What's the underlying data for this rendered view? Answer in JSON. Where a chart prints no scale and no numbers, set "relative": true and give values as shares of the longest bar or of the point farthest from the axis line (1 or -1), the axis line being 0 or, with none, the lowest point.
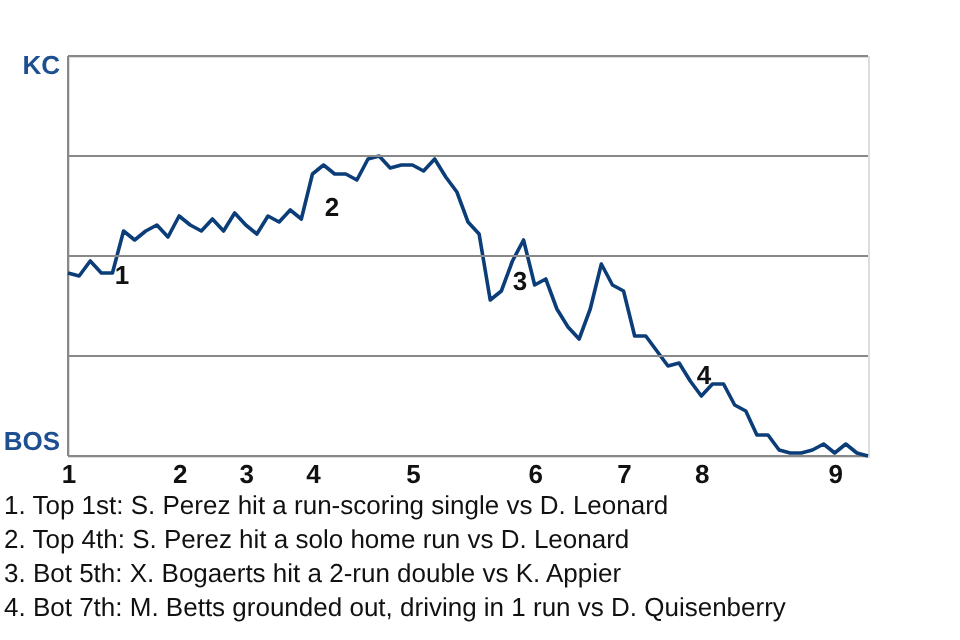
{
  "chart_data": {
    "type": "line",
    "categories": [
      "1",
      null,
      null,
      null,
      null,
      null,
      null,
      null,
      null,
      null,
      "2",
      null,
      null,
      null,
      null,
      null,
      "3",
      null,
      null,
      null,
      null,
      null,
      "4",
      null,
      null,
      null,
      null,
      null,
      null,
      null,
      null,
      "5",
      null,
      null,
      null,
      null,
      null,
      null,
      null,
      null,
      null,
      null,
      "6",
      null,
      null,
      null,
      null,
      null,
      null,
      null,
      "7",
      null,
      null,
      null,
      null,
      null,
      null,
      "8",
      null,
      null,
      null,
      null,
      null,
      null,
      null,
      null,
      null,
      null,
      null,
      "9",
      null,
      null,
      null
    ],
    "relative": true,
    "series": [
      {
        "color": "#0b3d78",
        "values": [
          0.61,
          0.6,
          0.65,
          0.61,
          0.61,
          0.75,
          0.72,
          0.75,
          0.77,
          0.73,
          0.8,
          0.77,
          0.75,
          0.79,
          0.75,
          0.81,
          0.77,
          0.74,
          0.8,
          0.78,
          0.82,
          0.79,
          0.94,
          0.97,
          0.94,
          0.94,
          0.92,
          0.99,
          1,
          0.96,
          0.97,
          0.97,
          0.95,
          0.99,
          0.93,
          0.88,
          0.78,
          0.74,
          0.52,
          0.55,
          0.65,
          0.72,
          0.57,
          0.59,
          0.49,
          0.43,
          0.39,
          0.49,
          0.64,
          0.57,
          0.55,
          0.4,
          0.4,
          0.35,
          0.3,
          0.31,
          0.25,
          0.2,
          0.24,
          0.24,
          0.17,
          0.15,
          0.07,
          0.07,
          0.02,
          0.01,
          0.01,
          0.02,
          0.04,
          0.01,
          0.04,
          0.01,
          0
        ]
      }
    ],
    "ref_lines": [
      {
        "axis": "y",
        "value": 0.333,
        "color": "#888888"
      },
      {
        "axis": "y",
        "value": 0.667,
        "color": "#888888"
      },
      {
        "axis": "y",
        "value": 1,
        "color": "#888888"
      }
    ],
    "annotations": [
      "KC",
      "BOS",
      "1",
      "2",
      "3",
      "4",
      "1. Top 1st: S. Perez hit a run-scoring single vs D. Leonard",
      "2. Top 4th: S. Perez hit a solo home run vs D. Leonard",
      "3. Bot 5th: X. Bogaerts hit a 2-run double vs K. Appier",
      "4. Bot 7th: M. Betts grounded out, driving in 1 run vs D. Quisenberry"
    ]
  }
}
